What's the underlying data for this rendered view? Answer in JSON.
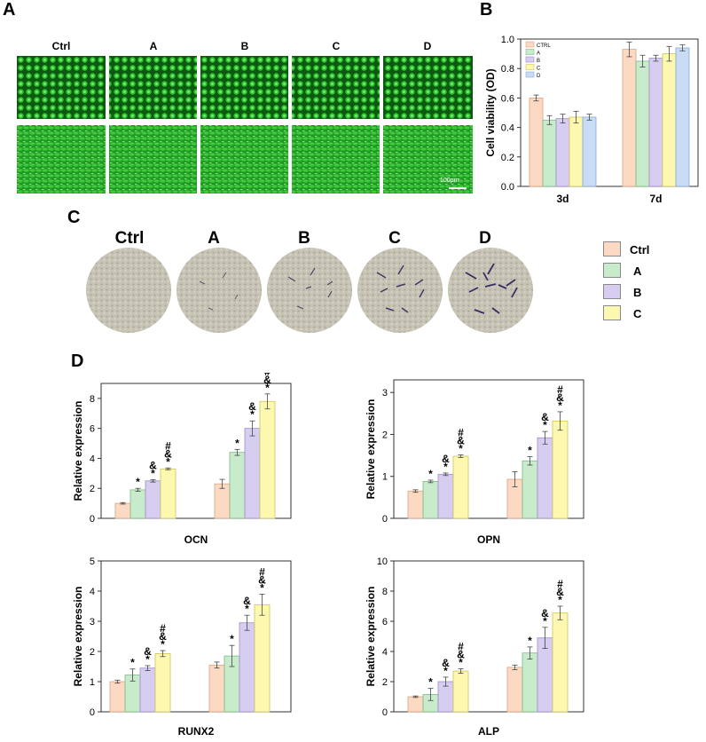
{
  "panel_letters": {
    "a": "A",
    "b": "B",
    "c": "C",
    "d": "D"
  },
  "micrograph": {
    "labels": [
      "Ctrl",
      "A",
      "B",
      "C",
      "D"
    ],
    "scale_bar": "100μm",
    "color": "#1a9a22"
  },
  "stain": {
    "labels": [
      "Ctrl",
      "A",
      "B",
      "C",
      "D"
    ]
  },
  "legend": {
    "entries": [
      "Ctrl",
      "A",
      "B",
      "C"
    ]
  },
  "colors": {
    "ctrl": "#fbd9c2",
    "a": "#c8ebcc",
    "b": "#d7cdf0",
    "c": "#fdf8b0",
    "d": "#c9dcf5"
  },
  "chart_data": [
    {
      "id": "viability",
      "type": "bar",
      "title": "",
      "xlabel": "",
      "ylabel": "Cell viability (OD)",
      "ylim": [
        0,
        1.0
      ],
      "yticks": [
        "0.0",
        "0.2",
        "0.4",
        "0.6",
        "0.8",
        "1.0"
      ],
      "categories": [
        "3d",
        "7d"
      ],
      "legend_position": "top-left",
      "series": [
        {
          "name": "CTRL",
          "values": [
            0.6,
            0.93
          ],
          "errors": [
            0.02,
            0.05
          ]
        },
        {
          "name": "A",
          "values": [
            0.45,
            0.85
          ],
          "errors": [
            0.03,
            0.04
          ]
        },
        {
          "name": "B",
          "values": [
            0.46,
            0.87
          ],
          "errors": [
            0.03,
            0.02
          ]
        },
        {
          "name": "C",
          "values": [
            0.47,
            0.9
          ],
          "errors": [
            0.04,
            0.05
          ]
        },
        {
          "name": "D",
          "values": [
            0.47,
            0.94
          ],
          "errors": [
            0.02,
            0.02
          ]
        }
      ]
    },
    {
      "id": "ocn",
      "type": "bar",
      "title": "",
      "xlabel": "OCN",
      "ylabel": "Relative expression",
      "ylim": [
        0,
        9
      ],
      "yticks": [
        "0",
        "2",
        "4",
        "6",
        "8"
      ],
      "categories": [
        "",
        ""
      ],
      "series": [
        {
          "name": "Ctrl",
          "values": [
            1.0,
            2.3
          ],
          "errors": [
            0.05,
            0.3
          ],
          "marks": [
            "",
            ""
          ]
        },
        {
          "name": "A",
          "values": [
            1.9,
            4.4
          ],
          "errors": [
            0.1,
            0.2
          ],
          "marks": [
            "*",
            "*"
          ]
        },
        {
          "name": "B",
          "values": [
            2.5,
            6.0
          ],
          "errors": [
            0.08,
            0.5
          ],
          "marks": [
            "&\n*",
            "&\n*"
          ]
        },
        {
          "name": "C",
          "values": [
            3.3,
            7.8
          ],
          "errors": [
            0.06,
            0.5
          ],
          "marks": [
            "#\n&\n*",
            "#\n&\n*"
          ]
        }
      ]
    },
    {
      "id": "opn",
      "type": "bar",
      "title": "",
      "xlabel": "OPN",
      "ylabel": "Relative expression",
      "ylim": [
        0,
        3.3
      ],
      "yticks": [
        "0",
        "1",
        "2",
        "3"
      ],
      "categories": [
        "",
        ""
      ],
      "series": [
        {
          "name": "Ctrl",
          "values": [
            0.65,
            0.93
          ],
          "errors": [
            0.03,
            0.18
          ],
          "marks": [
            "",
            ""
          ]
        },
        {
          "name": "A",
          "values": [
            0.88,
            1.37
          ],
          "errors": [
            0.03,
            0.1
          ],
          "marks": [
            "*",
            "*"
          ]
        },
        {
          "name": "B",
          "values": [
            1.05,
            1.92
          ],
          "errors": [
            0.03,
            0.15
          ],
          "marks": [
            "&\n*",
            "&\n*"
          ]
        },
        {
          "name": "C",
          "values": [
            1.48,
            2.32
          ],
          "errors": [
            0.03,
            0.22
          ],
          "marks": [
            "#\n&\n*",
            "#\n&\n*"
          ]
        }
      ]
    },
    {
      "id": "runx2",
      "type": "bar",
      "title": "",
      "xlabel": "RUNX2",
      "ylabel": "Relative expression",
      "ylim": [
        0,
        5
      ],
      "yticks": [
        "0",
        "1",
        "2",
        "3",
        "4",
        "5"
      ],
      "categories": [
        "",
        ""
      ],
      "series": [
        {
          "name": "Ctrl",
          "values": [
            1.0,
            1.55
          ],
          "errors": [
            0.05,
            0.1
          ],
          "marks": [
            "",
            ""
          ]
        },
        {
          "name": "A",
          "values": [
            1.22,
            1.85
          ],
          "errors": [
            0.2,
            0.35
          ],
          "marks": [
            "*",
            "*"
          ]
        },
        {
          "name": "B",
          "values": [
            1.45,
            2.95
          ],
          "errors": [
            0.08,
            0.25
          ],
          "marks": [
            "&\n*",
            "&\n*"
          ]
        },
        {
          "name": "C",
          "values": [
            1.93,
            3.55
          ],
          "errors": [
            0.1,
            0.35
          ],
          "marks": [
            "#\n&\n*",
            "#\n&\n*"
          ]
        }
      ]
    },
    {
      "id": "alp",
      "type": "bar",
      "title": "",
      "xlabel": "ALP",
      "ylabel": "Relative expression",
      "ylim": [
        0,
        10
      ],
      "yticks": [
        "0",
        "2",
        "4",
        "6",
        "8",
        "10"
      ],
      "categories": [
        "",
        ""
      ],
      "series": [
        {
          "name": "Ctrl",
          "values": [
            1.0,
            2.95
          ],
          "errors": [
            0.05,
            0.15
          ],
          "marks": [
            "",
            ""
          ]
        },
        {
          "name": "A",
          "values": [
            1.15,
            3.9
          ],
          "errors": [
            0.4,
            0.4
          ],
          "marks": [
            "*",
            "*"
          ]
        },
        {
          "name": "B",
          "values": [
            2.0,
            4.9
          ],
          "errors": [
            0.3,
            0.7
          ],
          "marks": [
            "&\n*",
            "&\n*"
          ]
        },
        {
          "name": "C",
          "values": [
            2.7,
            6.55
          ],
          "errors": [
            0.15,
            0.45
          ],
          "marks": [
            "#\n&\n*",
            "#\n&\n*"
          ]
        }
      ]
    }
  ]
}
